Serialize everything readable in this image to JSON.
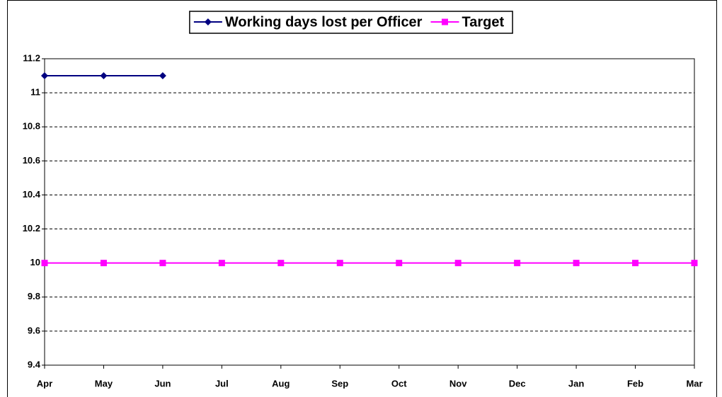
{
  "chart_data": {
    "type": "line",
    "categories": [
      "Apr",
      "May",
      "Jun",
      "Jul",
      "Aug",
      "Sep",
      "Oct",
      "Nov",
      "Dec",
      "Jan",
      "Feb",
      "Mar"
    ],
    "series": [
      {
        "name": "Working days lost per Officer",
        "color": "#000080",
        "marker": "diamond",
        "values": [
          11.1,
          11.1,
          11.1,
          null,
          null,
          null,
          null,
          null,
          null,
          null,
          null,
          null
        ]
      },
      {
        "name": "Target",
        "color": "#ff00ff",
        "marker": "square",
        "values": [
          10,
          10,
          10,
          10,
          10,
          10,
          10,
          10,
          10,
          10,
          10,
          10
        ]
      }
    ],
    "ylim": [
      9.4,
      11.2
    ],
    "yticks": [
      9.4,
      9.6,
      9.8,
      10,
      10.2,
      10.4,
      10.6,
      10.8,
      11,
      11.2
    ],
    "grid": true
  }
}
